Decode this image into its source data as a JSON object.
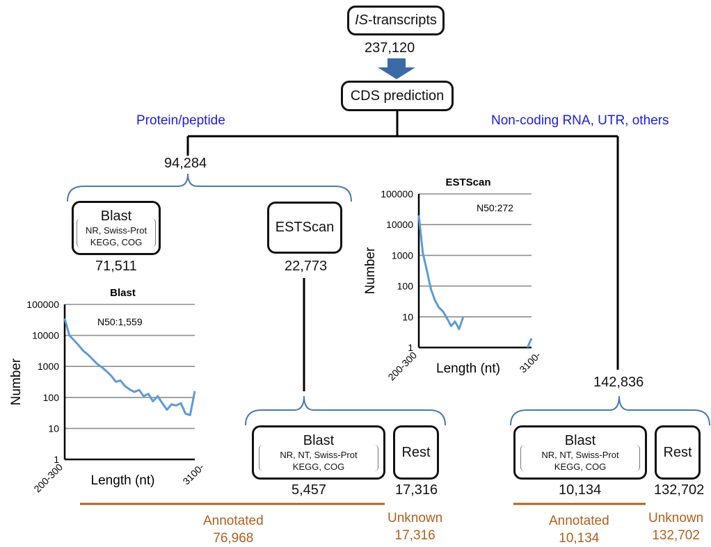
{
  "top": {
    "is_prefix": "IS",
    "is_suffix": "-transcripts",
    "is_count": "237,120",
    "cds_label": "CDS prediction"
  },
  "branches": {
    "left_label": "Protein/peptide",
    "right_label": "Non-coding RNA, UTR, others",
    "left_count": "94,284",
    "right_count": "142,836"
  },
  "protein": {
    "blast_box": {
      "title": "Blast",
      "line1": "NR, Swiss-Prot",
      "line2": "KEGG, COG"
    },
    "blast_count": "71,511",
    "estscan_label": "ESTScan",
    "estscan_count": "22,773",
    "estscan_blast_box": {
      "title": "Blast",
      "line1": "NR, NT, Swiss-Prot",
      "line2": "KEGG, COG"
    },
    "estscan_blast_count": "5,457",
    "rest_label": "Rest",
    "rest_count": "17,316"
  },
  "noncoding": {
    "blast_box": {
      "title": "Blast",
      "line1": "NR, NT, Swiss-Prot",
      "line2": "KEGG, COG"
    },
    "blast_count": "10,134",
    "rest_label": "Rest",
    "rest_count": "132,702"
  },
  "summary": {
    "left_annotated_label": "Annotated",
    "left_annotated_value": "76,968",
    "left_unknown_label": "Unknown",
    "left_unknown_value": "17,316",
    "right_annotated_label": "Annotated",
    "right_annotated_value": "10,134",
    "right_unknown_label": "Unknown",
    "right_unknown_value": "132,702"
  },
  "colors": {
    "arrow": "#3a6aa8",
    "line": "#5b9bd5",
    "bracket": "#4a78b0",
    "brown": "#b0601c",
    "blue_text": "#1a1aee"
  },
  "chart_data": [
    {
      "type": "line",
      "title": "Blast",
      "annotation": "N50:1,559",
      "xlabel": "Length (nt)",
      "ylabel": "Number",
      "yscale": "log",
      "ylim": [
        1,
        100000
      ],
      "yticks": [
        "100000",
        "10000",
        "1000",
        "100",
        "10",
        "1"
      ],
      "xticks": [
        "200-300",
        "3100-"
      ],
      "grid": true,
      "series": [
        {
          "values": [
            35000,
            10000,
            7000,
            4800,
            3200,
            2400,
            1700,
            1200,
            950,
            700,
            500,
            320,
            350,
            230,
            180,
            150,
            175,
            110,
            130,
            75,
            110,
            65,
            40,
            60,
            55,
            65,
            30,
            27,
            160
          ]
        }
      ]
    },
    {
      "type": "line",
      "title": "ESTScan",
      "annotation": "N50:272",
      "xlabel": "Length (nt)",
      "ylabel": "Number",
      "yscale": "log",
      "ylim": [
        1,
        100000
      ],
      "yticks": [
        "100000",
        "10000",
        "1000",
        "100",
        "10",
        "1"
      ],
      "xticks": [
        "200-300",
        "3100-"
      ],
      "grid": true,
      "series": [
        {
          "values": [
            20000,
            1200,
            320,
            80,
            35,
            20,
            15,
            9,
            5,
            7,
            4,
            9.5,
            null,
            null,
            null,
            null,
            null,
            null,
            null,
            null,
            null,
            null,
            null,
            null,
            null,
            null,
            null,
            1,
            2
          ]
        }
      ]
    }
  ]
}
